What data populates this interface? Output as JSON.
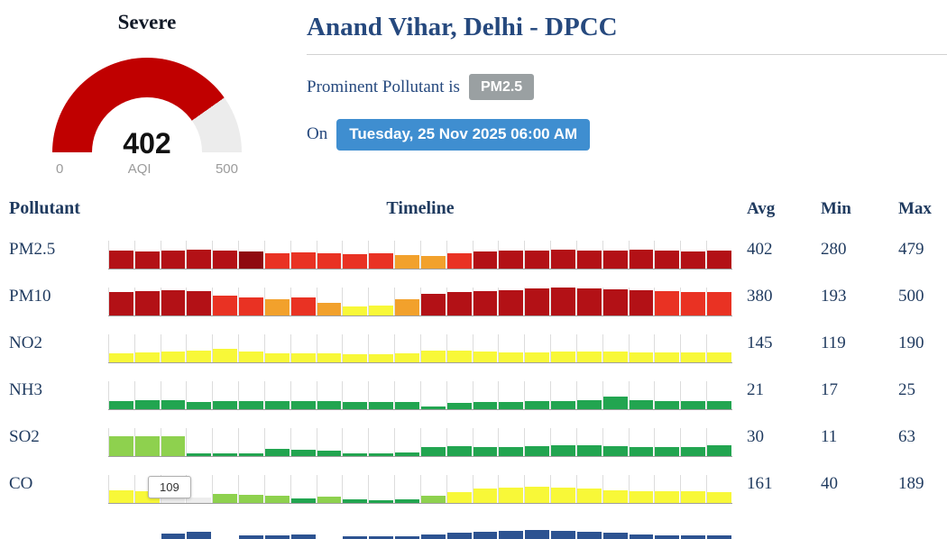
{
  "gauge": {
    "category": "Severe",
    "value": "402",
    "max": 500,
    "min_label": "0",
    "axis_label": "AQI",
    "max_label": "500"
  },
  "header": {
    "title": "Anand Vihar, Delhi - DPCC",
    "prominent_label": "Prominent Pollutant is",
    "prominent_value": "PM2.5",
    "on_label": "On",
    "datetime": "Tuesday, 25 Nov 2025 06:00 AM"
  },
  "table": {
    "columns": [
      "Pollutant",
      "Timeline",
      "Avg",
      "Min",
      "Max"
    ]
  },
  "colors": {
    "gauge_fill": "#c00000",
    "gauge_track": "#ececec",
    "badge_gray": "#9aa0a2",
    "badge_blue": "#3f8ed0",
    "navy_text": "#26497e",
    "categories": {
      "severe": "#b31116",
      "severe_dark": "#8f0a10",
      "very_poor": "#e93223",
      "poor": "#f2a12c",
      "moderate": "#f8f838",
      "satisfactory": "#8ed14e",
      "good": "#22a550",
      "pale": "#ededed",
      "blue": "#2d5391"
    }
  },
  "chart_data": {
    "type": "bar",
    "title": "Hourly pollutant timeline (24 bars per pollutant); bar heights estimated in px (0-31 scale), colors are AQI categories",
    "rows": [
      {
        "pollutant": "PM2.5",
        "avg": "402",
        "min": "280",
        "max": "479",
        "bars": [
          [
            20,
            "severe"
          ],
          [
            19,
            "severe"
          ],
          [
            20,
            "severe"
          ],
          [
            21,
            "severe"
          ],
          [
            20,
            "severe"
          ],
          [
            19,
            "severe_dark"
          ],
          [
            17,
            "very_poor"
          ],
          [
            18,
            "very_poor"
          ],
          [
            17,
            "very_poor"
          ],
          [
            16,
            "very_poor"
          ],
          [
            17,
            "very_poor"
          ],
          [
            15,
            "poor"
          ],
          [
            14,
            "poor"
          ],
          [
            17,
            "very_poor"
          ],
          [
            19,
            "severe"
          ],
          [
            20,
            "severe"
          ],
          [
            20,
            "severe"
          ],
          [
            21,
            "severe"
          ],
          [
            20,
            "severe"
          ],
          [
            20,
            "severe"
          ],
          [
            21,
            "severe"
          ],
          [
            20,
            "severe"
          ],
          [
            19,
            "severe"
          ],
          [
            20,
            "severe"
          ]
        ]
      },
      {
        "pollutant": "PM10",
        "avg": "380",
        "min": "193",
        "max": "500",
        "bars": [
          [
            26,
            "severe"
          ],
          [
            27,
            "severe"
          ],
          [
            28,
            "severe"
          ],
          [
            27,
            "severe"
          ],
          [
            22,
            "very_poor"
          ],
          [
            20,
            "very_poor"
          ],
          [
            18,
            "poor"
          ],
          [
            20,
            "very_poor"
          ],
          [
            14,
            "poor"
          ],
          [
            10,
            "moderate"
          ],
          [
            11,
            "moderate"
          ],
          [
            18,
            "poor"
          ],
          [
            24,
            "severe"
          ],
          [
            26,
            "severe"
          ],
          [
            27,
            "severe"
          ],
          [
            28,
            "severe"
          ],
          [
            30,
            "severe"
          ],
          [
            31,
            "severe"
          ],
          [
            30,
            "severe"
          ],
          [
            29,
            "severe"
          ],
          [
            28,
            "severe"
          ],
          [
            27,
            "very_poor"
          ],
          [
            26,
            "very_poor"
          ],
          [
            26,
            "very_poor"
          ]
        ]
      },
      {
        "pollutant": "NO2",
        "avg": "145",
        "min": "119",
        "max": "190",
        "bars": [
          [
            10,
            "moderate"
          ],
          [
            11,
            "moderate"
          ],
          [
            12,
            "moderate"
          ],
          [
            13,
            "moderate"
          ],
          [
            15,
            "moderate"
          ],
          [
            12,
            "moderate"
          ],
          [
            10,
            "moderate"
          ],
          [
            10,
            "moderate"
          ],
          [
            10,
            "moderate"
          ],
          [
            9,
            "moderate"
          ],
          [
            9,
            "moderate"
          ],
          [
            10,
            "moderate"
          ],
          [
            13,
            "moderate"
          ],
          [
            13,
            "moderate"
          ],
          [
            12,
            "moderate"
          ],
          [
            11,
            "moderate"
          ],
          [
            11,
            "moderate"
          ],
          [
            12,
            "moderate"
          ],
          [
            12,
            "moderate"
          ],
          [
            12,
            "moderate"
          ],
          [
            11,
            "moderate"
          ],
          [
            11,
            "moderate"
          ],
          [
            11,
            "moderate"
          ],
          [
            11,
            "moderate"
          ]
        ]
      },
      {
        "pollutant": "NH3",
        "avg": "21",
        "min": "17",
        "max": "25",
        "bars": [
          [
            9,
            "good"
          ],
          [
            10,
            "good"
          ],
          [
            10,
            "good"
          ],
          [
            8,
            "good"
          ],
          [
            9,
            "good"
          ],
          [
            9,
            "good"
          ],
          [
            9,
            "good"
          ],
          [
            9,
            "good"
          ],
          [
            9,
            "good"
          ],
          [
            8,
            "good"
          ],
          [
            8,
            "good"
          ],
          [
            8,
            "good"
          ],
          [
            3,
            "good"
          ],
          [
            7,
            "good"
          ],
          [
            8,
            "good"
          ],
          [
            8,
            "good"
          ],
          [
            9,
            "good"
          ],
          [
            9,
            "good"
          ],
          [
            10,
            "good"
          ],
          [
            14,
            "good"
          ],
          [
            10,
            "good"
          ],
          [
            9,
            "good"
          ],
          [
            9,
            "good"
          ],
          [
            9,
            "good"
          ]
        ]
      },
      {
        "pollutant": "SO2",
        "avg": "30",
        "min": "11",
        "max": "63",
        "bars": [
          [
            22,
            "satisfactory"
          ],
          [
            22,
            "satisfactory"
          ],
          [
            22,
            "satisfactory"
          ],
          [
            3,
            "good"
          ],
          [
            3,
            "good"
          ],
          [
            3,
            "good"
          ],
          [
            8,
            "good"
          ],
          [
            7,
            "good"
          ],
          [
            6,
            "good"
          ],
          [
            3,
            "good"
          ],
          [
            3,
            "good"
          ],
          [
            4,
            "good"
          ],
          [
            10,
            "good"
          ],
          [
            11,
            "good"
          ],
          [
            10,
            "good"
          ],
          [
            10,
            "good"
          ],
          [
            11,
            "good"
          ],
          [
            12,
            "good"
          ],
          [
            12,
            "good"
          ],
          [
            11,
            "good"
          ],
          [
            10,
            "good"
          ],
          [
            10,
            "good"
          ],
          [
            10,
            "good"
          ],
          [
            12,
            "good"
          ]
        ]
      },
      {
        "pollutant": "CO",
        "avg": "161",
        "min": "40",
        "max": "189",
        "bars": [
          [
            14,
            "moderate"
          ],
          [
            13,
            "moderate"
          ],
          [
            8,
            "pale"
          ],
          [
            6,
            "pale"
          ],
          [
            10,
            "satisfactory"
          ],
          [
            9,
            "satisfactory"
          ],
          [
            8,
            "satisfactory"
          ],
          [
            5,
            "good"
          ],
          [
            7,
            "satisfactory"
          ],
          [
            4,
            "good"
          ],
          [
            3,
            "good"
          ],
          [
            4,
            "good"
          ],
          [
            8,
            "satisfactory"
          ],
          [
            12,
            "moderate"
          ],
          [
            16,
            "moderate"
          ],
          [
            17,
            "moderate"
          ],
          [
            18,
            "moderate"
          ],
          [
            17,
            "moderate"
          ],
          [
            16,
            "moderate"
          ],
          [
            14,
            "moderate"
          ],
          [
            13,
            "moderate"
          ],
          [
            13,
            "moderate"
          ],
          [
            13,
            "moderate"
          ],
          [
            12,
            "moderate"
          ]
        ]
      }
    ],
    "tooltip": {
      "row": "CO",
      "value": "109",
      "bar_index": 2
    },
    "partial_next_row": {
      "color": "blue",
      "bars": [
        0,
        0,
        6,
        8,
        0,
        4,
        4,
        5,
        0,
        3,
        3,
        3,
        5,
        7,
        8,
        9,
        10,
        9,
        8,
        7,
        5,
        4,
        4,
        4
      ]
    }
  }
}
